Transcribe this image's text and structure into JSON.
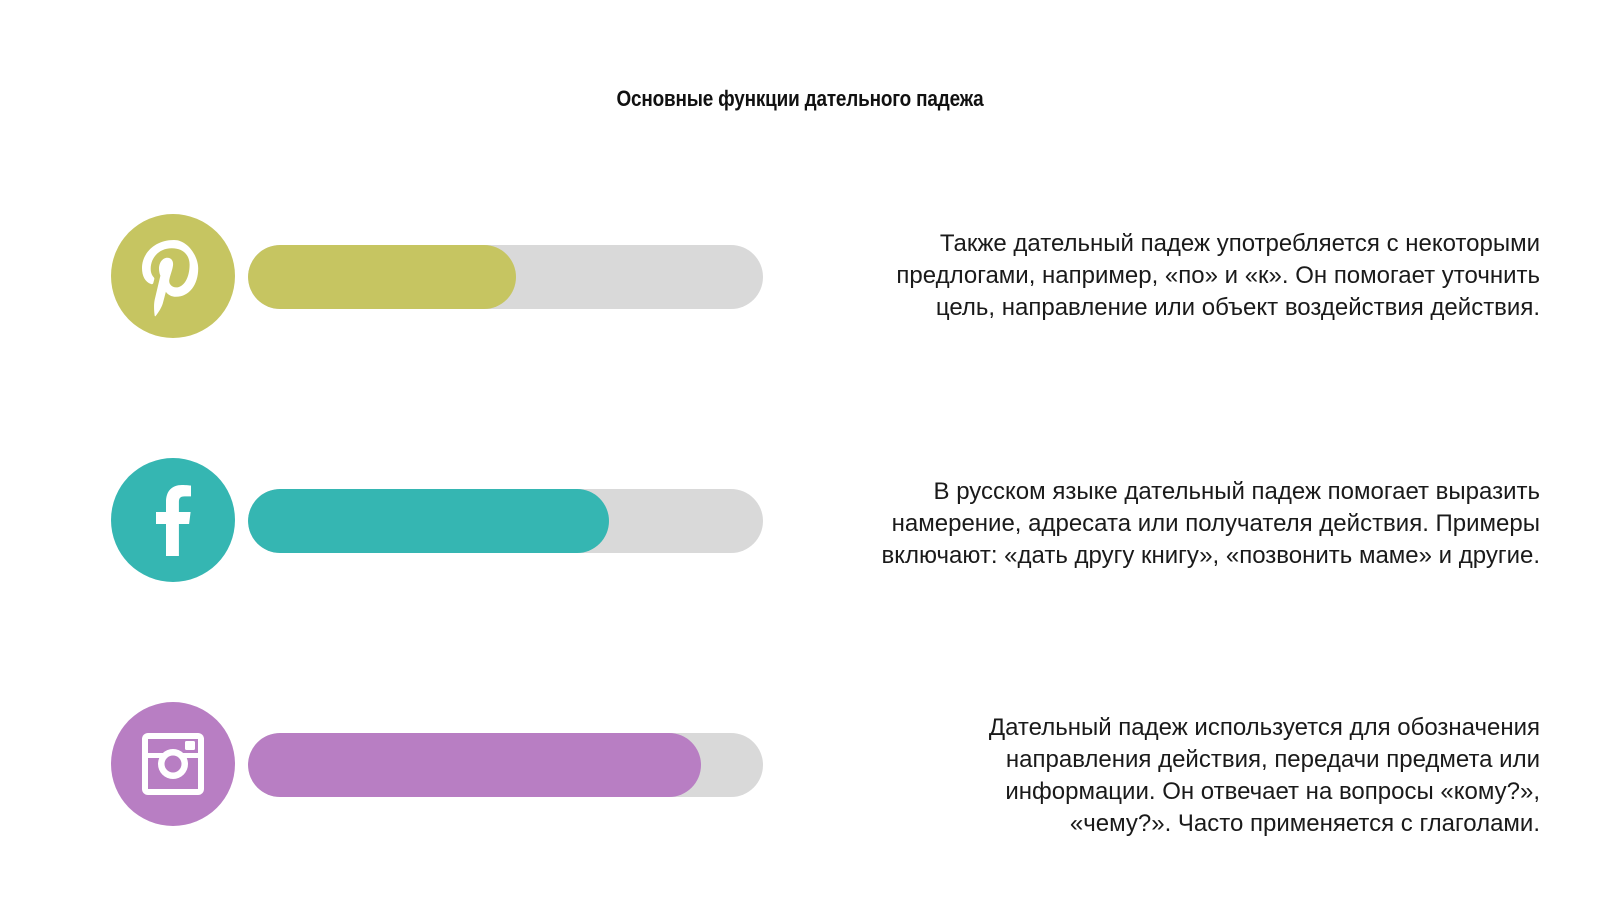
{
  "title": "Основные функции дательного падежа",
  "rows": [
    {
      "icon": "pinterest-icon",
      "color": "#c6c561",
      "progress_fraction": 0.52,
      "text_lines": [
        "Также дательный падеж употребляется с некоторыми",
        "предлогами, например, «по» и «к». Он помогает уточнить",
        "цель, направление или объект воздействия действия."
      ]
    },
    {
      "icon": "facebook-icon",
      "color": "#35b6b2",
      "progress_fraction": 0.7,
      "text_lines": [
        "В русском языке дательный падеж помогает выразить",
        "намерение, адресата или получателя действия. Примеры",
        "включают: «дать другу книгу», «позвонить маме» и другие."
      ]
    },
    {
      "icon": "instagram-icon",
      "color": "#b87ec3",
      "progress_fraction": 0.88,
      "text_lines": [
        "Дательный падеж используется для обозначения",
        "направления действия, передачи предмета или",
        "информации. Он отвечает на вопросы «кому?»,",
        "«чему?». Часто применяется с глаголами."
      ]
    }
  ],
  "track_color": "#d9d9d9"
}
